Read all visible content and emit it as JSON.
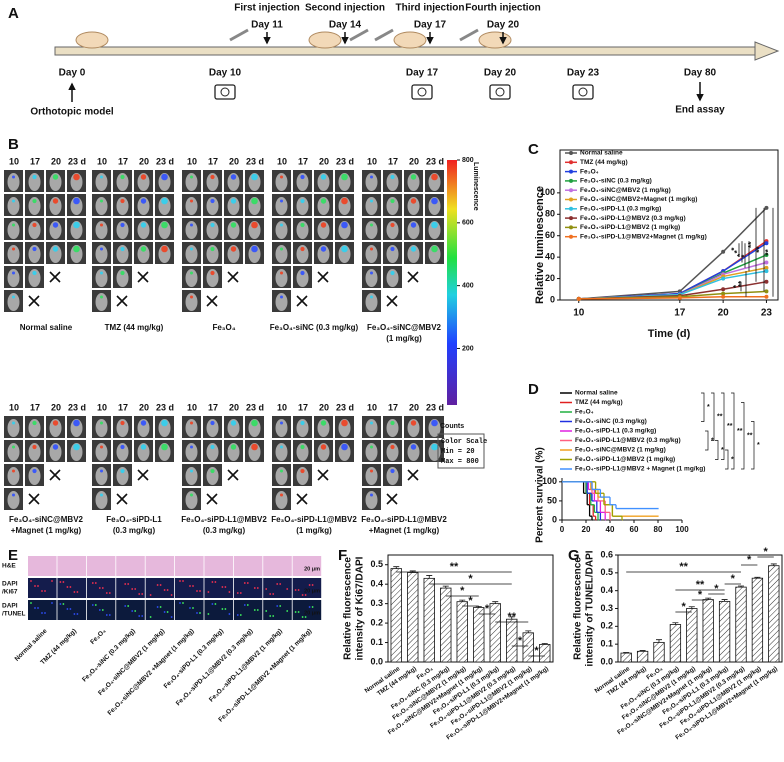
{
  "panel_labels": [
    "A",
    "B",
    "C",
    "D",
    "E",
    "F",
    "G"
  ],
  "timeline": {
    "injections": [
      {
        "label": "First injection",
        "day": "Day 11"
      },
      {
        "label": "Second injection",
        "day": "Day 14"
      },
      {
        "label": "Third injection",
        "day": "Day 17"
      },
      {
        "label": "Fourth injection",
        "day": "Day 20"
      }
    ],
    "imaging_days": [
      "Day 0",
      "Day 10",
      "Day 17",
      "Day 20",
      "Day 23",
      "Day 80"
    ],
    "notes": [
      "Orthotopic model",
      "End assay"
    ]
  },
  "imaging": {
    "day_header": [
      "10",
      "17",
      "20",
      "23 d"
    ],
    "groups": [
      [
        "Normal saline"
      ],
      [
        "TMZ (44 mg/kg)"
      ],
      [
        "Fe₃O₄"
      ],
      [
        "Fe₃O₄-siNC (0.3 mg/kg)"
      ],
      [
        "Fe₃O₄-siNC@MBV2",
        "(1 mg/kg)"
      ],
      [
        "Fe₃O₄-siNC@MBV2",
        "+Magnet (1 mg/kg)"
      ],
      [
        "Fe₃O₄-siPD-L1",
        "(0.3 mg/kg)"
      ],
      [
        "Fe₃O₄-siPD-L1@MBV2",
        "(0.3 mg/kg)"
      ],
      [
        "Fe₃O₄-siPD-L1@MBV2",
        "(1 mg/kg)"
      ],
      [
        "Fe₃O₄-siPD-L1@MBV2",
        "+Magnet (1 mg/kg)"
      ]
    ],
    "colorbar": {
      "title": "Luminescence",
      "lim": [
        20,
        800
      ],
      "ticks": [
        200,
        400,
        600,
        800
      ],
      "unit": "Counts",
      "scale": [
        "Color Scale",
        "Min = 20",
        "Max = 800"
      ]
    }
  },
  "histology": {
    "rows": [
      [
        "H&E"
      ],
      [
        "DAPI",
        "/Ki67"
      ],
      [
        "DAPI",
        "/TUNEL"
      ]
    ],
    "scale_bar": "20 μm",
    "columns": [
      "Normal saline",
      "TMZ (44 mg/kg)",
      "Fe₃O₄",
      "Fe₃O₄-siNC (0.3 mg/kg)",
      "Fe₃O₄-siNC@MBV2 (1 mg/kg)",
      "Fe₃O₄-siNC@MBV2 +Magnet (1 mg/kg)",
      "Fe₃O₄-siPD-L1 (0.3 mg/kg)",
      "Fe₃O₄-siPD-L1@MBV2 (0.3 mg/kg)",
      "Fe₃O₄-siPD-L1@MBV2 (1 mg/kg)",
      "Fe₃O₄-siPD-L1@MBV2 +Magnet (1 mg/kg)"
    ]
  },
  "chart_data": [
    {
      "type": "line",
      "ylabel": "Relative luminescence",
      "xlabel": "Time (d)",
      "x": [
        10,
        17,
        20,
        23
      ],
      "xlim": [
        8.7,
        23.8
      ],
      "xticks": [
        10,
        17,
        20,
        23
      ],
      "ylim": [
        0,
        140
      ],
      "yticks": [
        0,
        20,
        40,
        60,
        80,
        100
      ],
      "series": [
        {
          "name": "Normal saline",
          "color": "#555555",
          "values": [
            1,
            8,
            45,
            86
          ]
        },
        {
          "name": "TMZ (44 mg/kg)",
          "color": "#e03030",
          "values": [
            1,
            6,
            27,
            55
          ]
        },
        {
          "name": "Fe₃O₄",
          "color": "#2040e0",
          "values": [
            1,
            6,
            27,
            53
          ]
        },
        {
          "name": "Fe₃O₄-siNC (0.3 mg/kg)",
          "color": "#20a040",
          "values": [
            1,
            5,
            25,
            42
          ]
        },
        {
          "name": "Fe₃O₄-siNC@MBV2 (1 mg/kg)",
          "color": "#c070e0",
          "values": [
            1,
            5,
            24,
            35
          ]
        },
        {
          "name": "Fe₃O₄-siNC@MBV2+Magnet (1 mg/kg)",
          "color": "#e0a020",
          "values": [
            1,
            5,
            22,
            30
          ]
        },
        {
          "name": "Fe₃O₄-siPD-L1 (0.3 mg/kg)",
          "color": "#30c0e0",
          "values": [
            1,
            5,
            20,
            27
          ]
        },
        {
          "name": "Fe₃O₄-siPD-L1@MBV2 (0.3 mg/kg)",
          "color": "#8b3030",
          "values": [
            1,
            4,
            10,
            17
          ]
        },
        {
          "name": "Fe₃O₄-siPD-L1@MBV2 (1 mg/kg)",
          "color": "#909010",
          "values": [
            1,
            3,
            6,
            8
          ]
        },
        {
          "name": "Fe₃O₄-siPD-L1@MBV2+Magnet (1 mg/kg)",
          "color": "#f07020",
          "values": [
            1,
            2,
            3,
            3
          ]
        }
      ],
      "annotations": [
        "**",
        "**",
        "**",
        "*",
        "*",
        "*",
        "*",
        "**",
        "*"
      ]
    },
    {
      "type": "step",
      "ylabel": "Percent survival (%)",
      "xlim": [
        0,
        100
      ],
      "xticks": [
        0,
        20,
        40,
        60,
        80,
        100
      ],
      "ylim": [
        0,
        110
      ],
      "yticks": [
        0,
        50,
        100
      ],
      "series": [
        {
          "name": "Normal saline",
          "color": "#000000",
          "x": [
            0,
            18,
            21,
            23,
            25
          ],
          "values": [
            100,
            70,
            40,
            10,
            0
          ]
        },
        {
          "name": "TMZ (44 mg/kg)",
          "color": "#e02020",
          "x": [
            0,
            20,
            23,
            26,
            28
          ],
          "values": [
            100,
            70,
            40,
            10,
            0
          ]
        },
        {
          "name": "Fe₃O₄",
          "color": "#20b040",
          "x": [
            0,
            20,
            24,
            27,
            30
          ],
          "values": [
            100,
            70,
            40,
            20,
            0
          ]
        },
        {
          "name": "Fe₃O₄-siNC (0.3 mg/kg)",
          "color": "#2030e0",
          "x": [
            0,
            21,
            25,
            29,
            32
          ],
          "values": [
            100,
            70,
            50,
            20,
            0
          ]
        },
        {
          "name": "Fe₃O₄-siPD-L1 (0.3 mg/kg)",
          "color": "#e020e0",
          "x": [
            0,
            22,
            27,
            32,
            36
          ],
          "values": [
            100,
            80,
            50,
            20,
            0
          ]
        },
        {
          "name": "Fe₃O₄-siPD-L1@MBV2 (0.3 mg/kg)",
          "color": "#ff6080",
          "x": [
            0,
            25,
            30,
            36,
            40
          ],
          "values": [
            100,
            70,
            50,
            20,
            0
          ]
        },
        {
          "name": "Fe₃O₄-siNC@MBV2 (1 mg/kg)",
          "color": "#f0a020",
          "x": [
            0,
            24,
            30,
            35,
            42,
            80
          ],
          "values": [
            100,
            80,
            60,
            40,
            10,
            10
          ]
        },
        {
          "name": "Fe₃O₄-siPD-L1@MBV2 (1 mg/kg)",
          "color": "#a0a000",
          "x": [
            0,
            28,
            35,
            42,
            50
          ],
          "values": [
            100,
            70,
            40,
            10,
            0
          ]
        },
        {
          "name": "Fe₃O₄-siPD-L1@MBV2 + Magnet (1 mg/kg)",
          "color": "#4090ff",
          "x": [
            0,
            25,
            32,
            40,
            45,
            80
          ],
          "values": [
            100,
            80,
            60,
            40,
            30,
            30
          ]
        }
      ],
      "annotations": [
        "*",
        "**",
        "**",
        "**",
        "**",
        "*",
        "*",
        "*",
        "*"
      ]
    },
    {
      "type": "bar",
      "ylabel": [
        "Relative fluorescence",
        "intensity of Ki67/DAPI"
      ],
      "categories": [
        "Normal saline",
        "TMZ (44 mg/kg)",
        "Fe₃O₄",
        "Fe₃O₄-siNC (0.3 mg/kg)",
        "Fe₃O₄-siNC@MBV2 (1 mg/kg)",
        "Fe₃O₄-siNC@MBV2+Magnet (1 mg/kg)",
        "Fe₃O₄-siPD-L1 (0.3 mg/kg)",
        "Fe₃O₄-siPD-L1@MBV2 (0.3 mg/kg)",
        "Fe₃O₄-siPD-L1@MBV2 (1 mg/kg)",
        "Fe₃O₄-siPD-L1@MBV2+Magnet (1 mg/kg)"
      ],
      "values": [
        0.48,
        0.46,
        0.43,
        0.38,
        0.31,
        0.28,
        0.3,
        0.22,
        0.15,
        0.09
      ],
      "errors": [
        0.01,
        0.008,
        0.015,
        0.01,
        0.008,
        0.006,
        0.01,
        0.012,
        0.01,
        0.005
      ],
      "ylim": [
        0,
        0.55
      ],
      "yticks": [
        {
          "value": 0,
          "label": "0.0"
        },
        0.1,
        0.2,
        0.3,
        0.4,
        0.5
      ],
      "annotations": [
        "**",
        "*",
        "*",
        "*",
        "*",
        "**",
        "*",
        "*"
      ]
    },
    {
      "type": "bar",
      "ylabel": [
        "Relative fluorescence",
        "intensity of TUNEL/DAPI"
      ],
      "categories": [
        "Normal saline",
        "TMZ (44 mg/kg)",
        "Fe₃O₄",
        "Fe₃O₄-siNC (0.3 mg/kg)",
        "Fe₃O₄-siNC@MBV2 (1 mg/kg)",
        "Fe₃O₄-siNC@MBV2+Magnet (1 mg/kg)",
        "Fe₃O₄-siPD-L1 (0.3 mg/kg)",
        "Fe₃O₄-siPD-L1@MBV2 (0.3 mg/kg)",
        "Fe₃O₄-siPD-L1@MBV2 (1 mg/kg)",
        "Fe₃O₄-siPD-L1@MBV2+Magnet (1 mg/kg)"
      ],
      "values": [
        0.05,
        0.06,
        0.11,
        0.21,
        0.3,
        0.35,
        0.34,
        0.42,
        0.47,
        0.54
      ],
      "errors": [
        0.003,
        0.004,
        0.015,
        0.01,
        0.01,
        0.008,
        0.01,
        0.006,
        0.005,
        0.01
      ],
      "ylim": [
        0,
        0.6
      ],
      "yticks": [
        {
          "value": 0,
          "label": "0.0"
        },
        0.1,
        0.2,
        0.3,
        0.4,
        0.5,
        0.6
      ],
      "annotations": [
        "**",
        "*",
        "*",
        "**",
        "*",
        "*",
        "*",
        "*"
      ]
    }
  ]
}
